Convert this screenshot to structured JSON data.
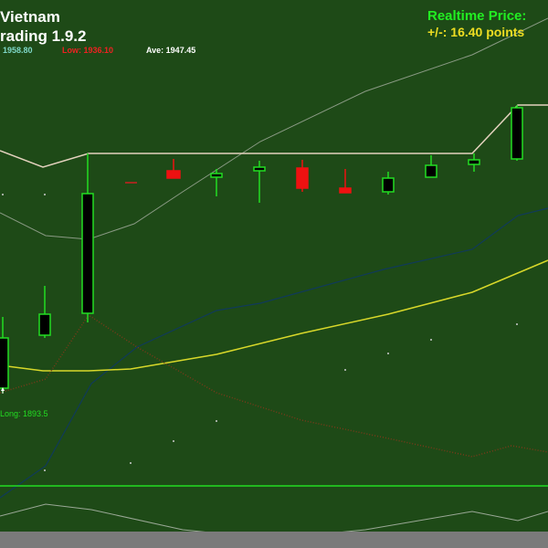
{
  "header": {
    "title_line1": "Vietnam",
    "title_line2": "rading 1.9.2",
    "high": "1958.80",
    "low": "Low: 1936.10",
    "ave": "Ave: 1947.45"
  },
  "realtime": {
    "label": "Realtime Price:",
    "change": "+/-: 16.40 points"
  },
  "annotation": "Long: 1893.5"
}
